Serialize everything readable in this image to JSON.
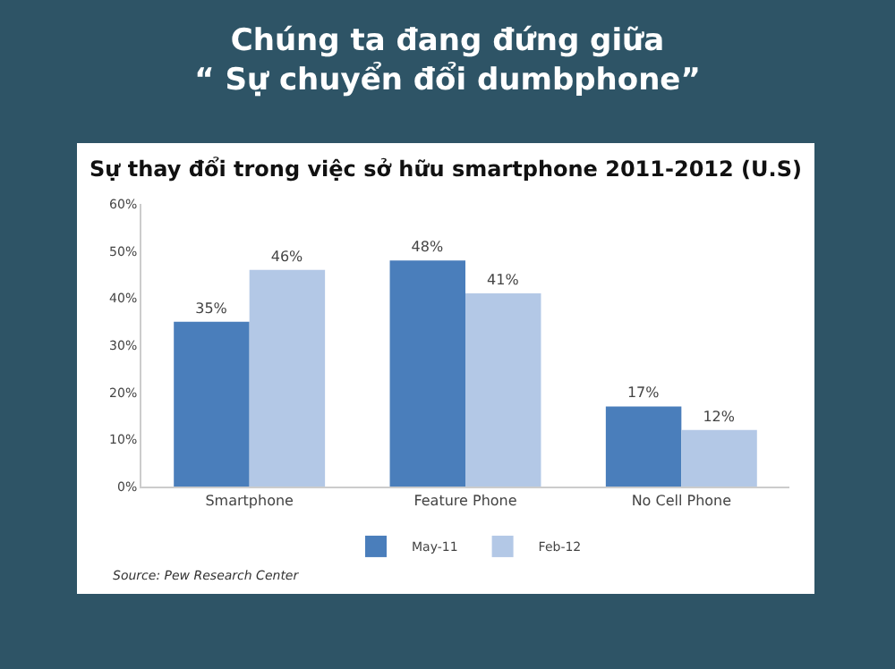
{
  "chart_data": {
    "type": "bar",
    "title": "Chúng ta đang đứng giữa\n“ Sự chuyển đổi dumbphone”",
    "subtitle": "Sự thay đổi trong việc sở hữu smartphone 2011-2012 (U.S)",
    "categories": [
      "Smartphone",
      "Feature Phone",
      "No Cell Phone"
    ],
    "series": [
      {
        "name": "May-11",
        "color": "#4a7ebb",
        "values": [
          35,
          48,
          17
        ],
        "value_labels": [
          "35%",
          "48%",
          "17%"
        ]
      },
      {
        "name": "Feb-12",
        "color": "#b3c8e6",
        "values": [
          46,
          41,
          12
        ],
        "value_labels": [
          "46%",
          "41%",
          "12%"
        ]
      }
    ],
    "ylim": [
      0,
      60
    ],
    "yticks": [
      {
        "value": 0,
        "label": "0%"
      },
      {
        "value": 10,
        "label": "10%"
      },
      {
        "value": 20,
        "label": "20%"
      },
      {
        "value": 30,
        "label": "30%"
      },
      {
        "value": 40,
        "label": "40%"
      },
      {
        "value": 50,
        "label": "50%"
      },
      {
        "value": 60,
        "label": "60%"
      }
    ],
    "grid": false,
    "legend": "bottom",
    "annotations": [
      "Source: Pew Research Center"
    ]
  }
}
